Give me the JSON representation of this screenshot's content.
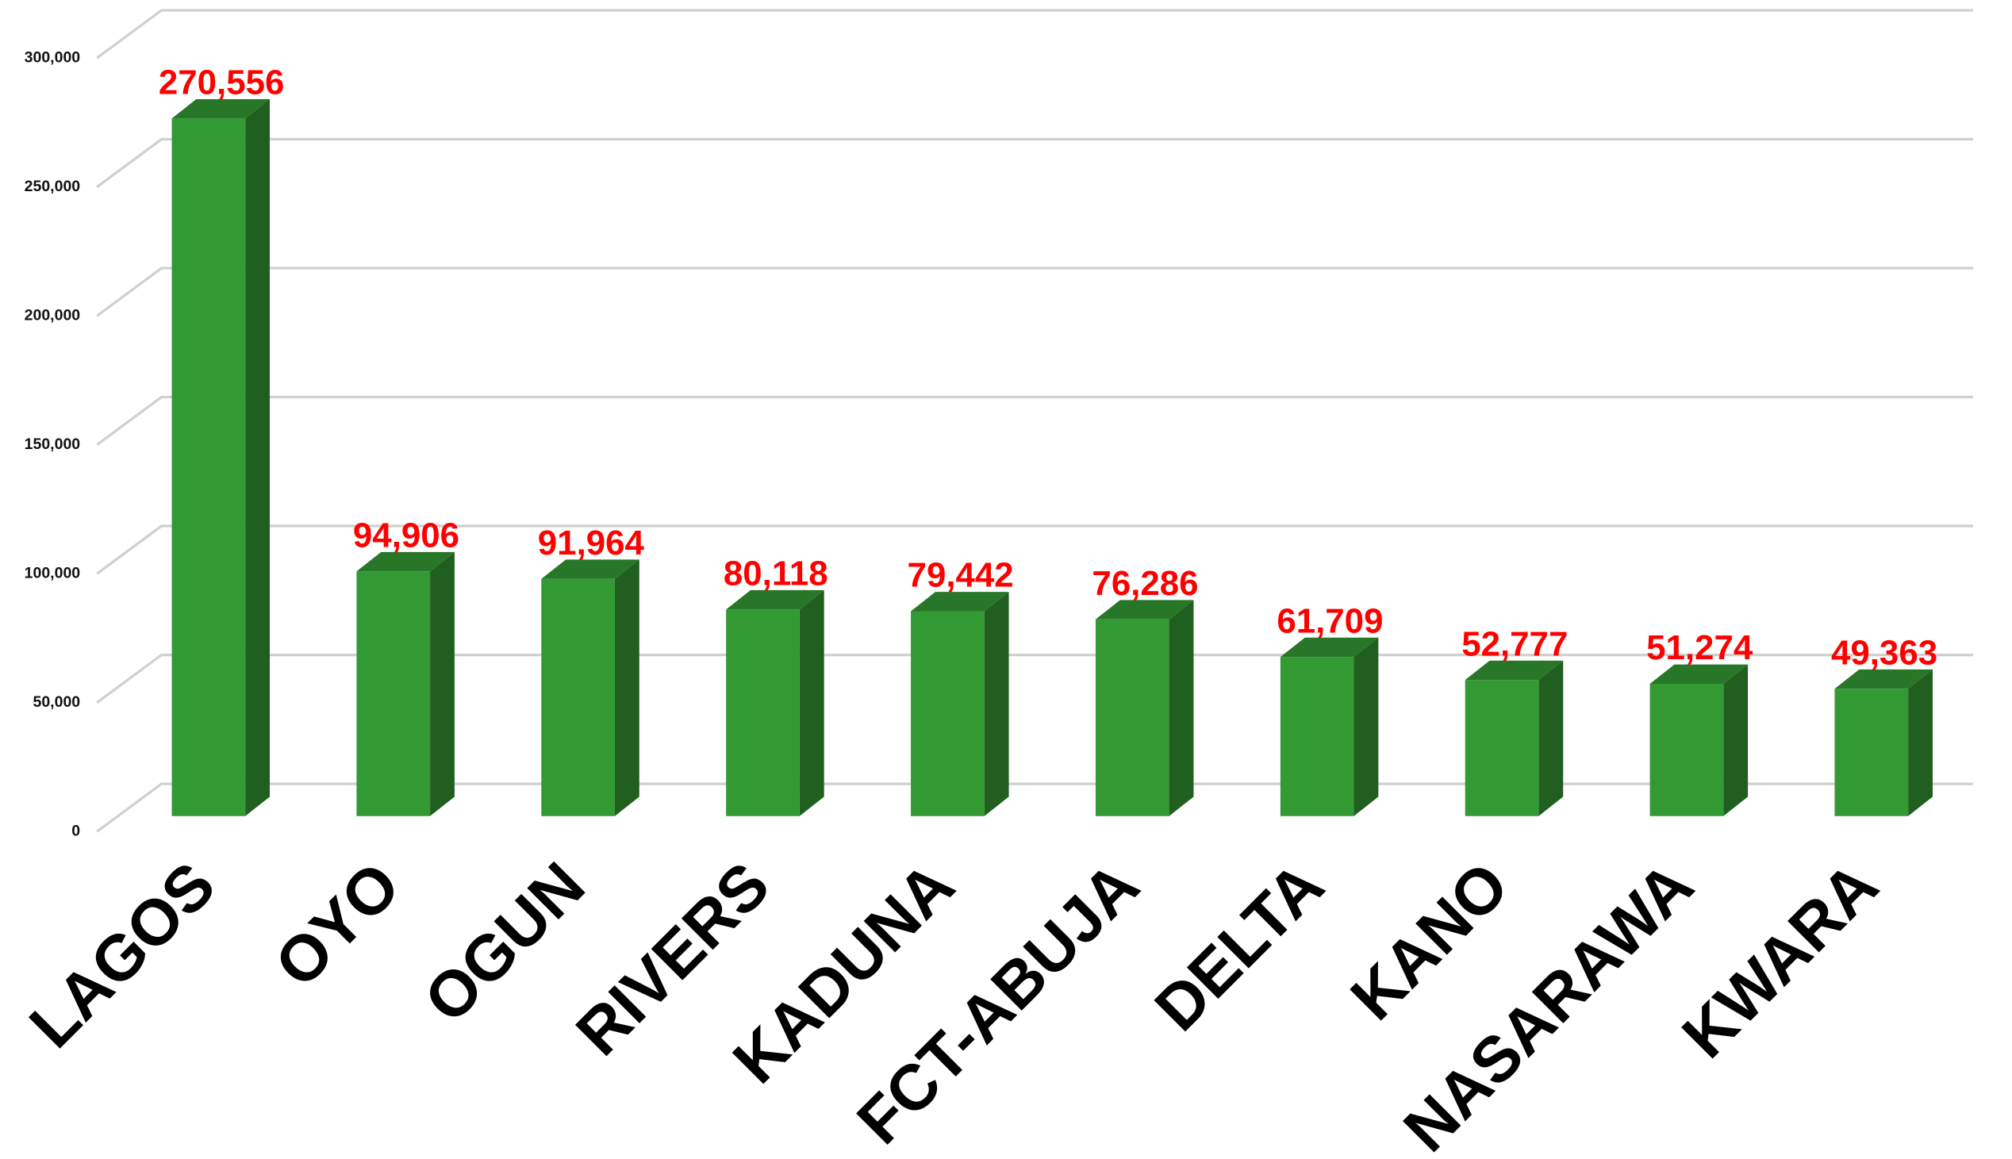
{
  "chart_data": {
    "type": "bar3d",
    "categories": [
      "LAGOS",
      "OYO",
      "OGUN",
      "RIVERS",
      "KADUNA",
      "FCT-ABUJA",
      "DELTA",
      "KANO",
      "NASARAWA",
      "KWARA"
    ],
    "values": [
      270556,
      94906,
      91964,
      80118,
      79442,
      76286,
      61709,
      52777,
      51274,
      49363
    ],
    "value_labels": [
      "270,556",
      "94,906",
      "91,964",
      "80,118",
      "79,442",
      "76,286",
      "61,709",
      "52,777",
      "51,274",
      "49,363"
    ],
    "color": "#339933",
    "ylim": [
      0,
      300000
    ],
    "yticks": [
      0,
      {
        "value": 50000,
        "label": "50,000"
      },
      {
        "value": 100000,
        "label": "100,000"
      },
      {
        "value": 150000,
        "label": "150,000"
      },
      {
        "value": 200000,
        "label": "200,000"
      },
      {
        "value": 250000,
        "label": "250,000"
      },
      {
        "value": 300000,
        "label": "300,000"
      }
    ],
    "grid": true
  }
}
